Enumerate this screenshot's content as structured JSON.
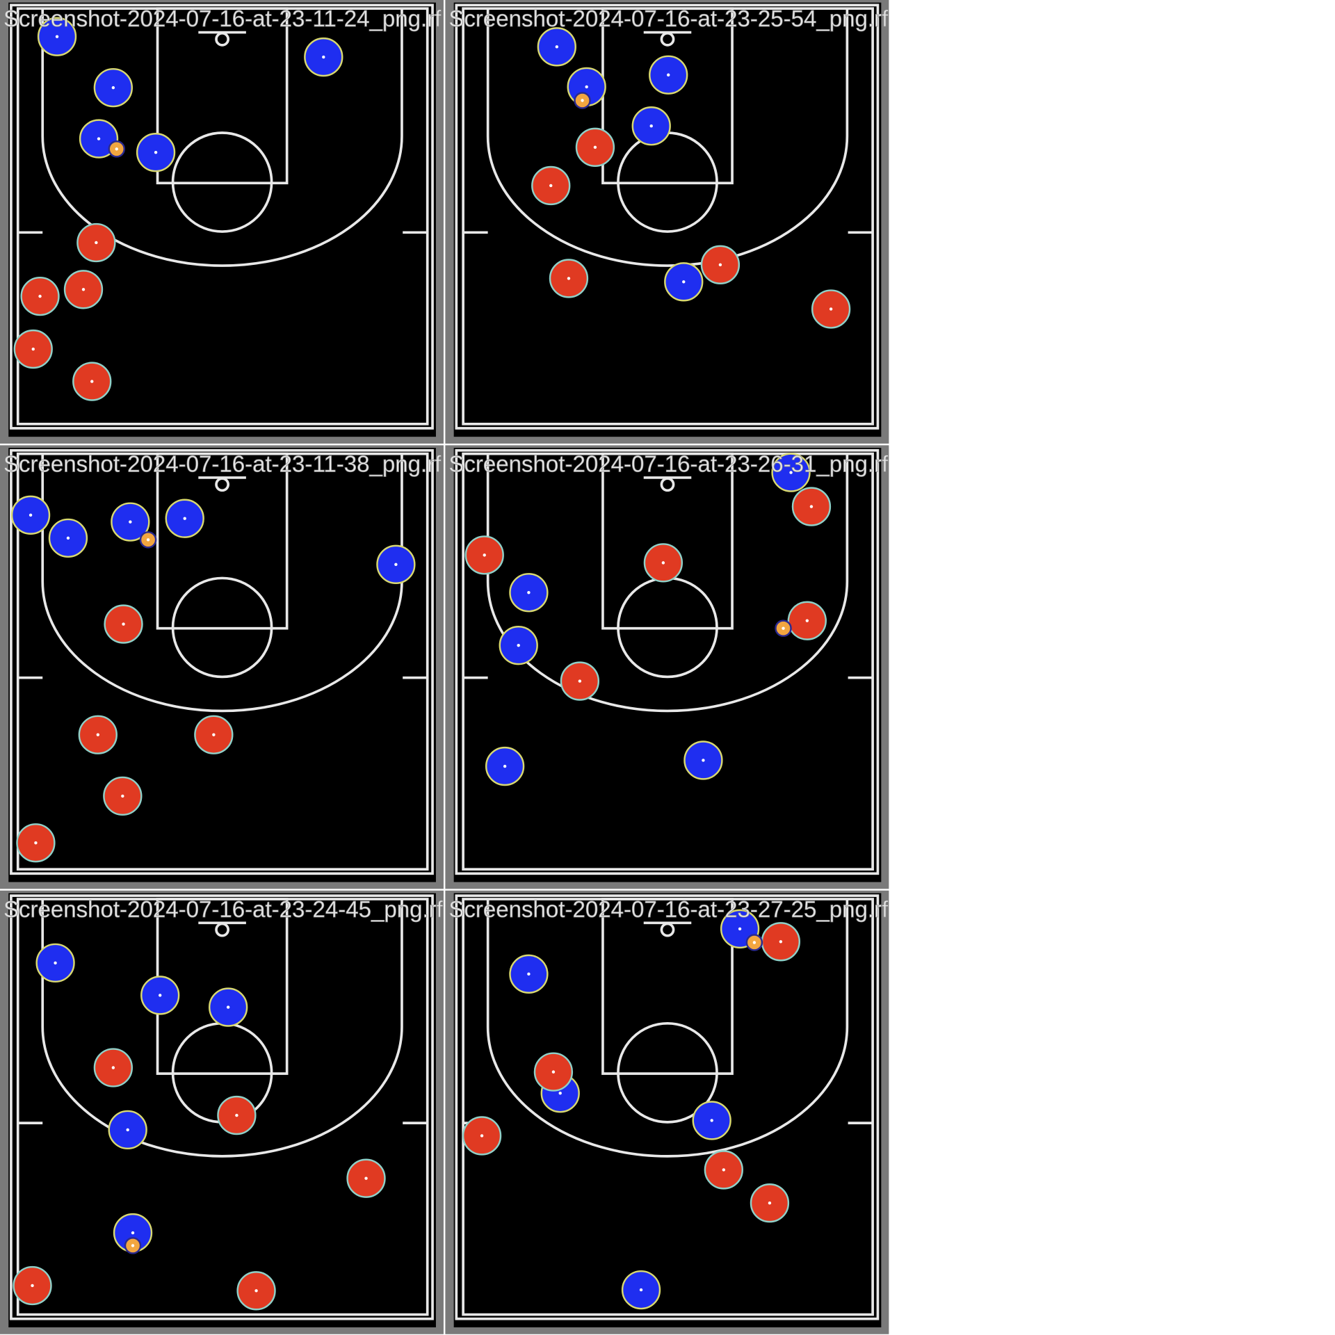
{
  "images": [
    {
      "title": "Screenshot-2024-07-16-at-23-11-24_png.rf"
    },
    {
      "title": "Screenshot-2024-07-16-at-23-25-54_png.rf"
    },
    {
      "title": "Screenshot-2024-07-16-at-23-11-38_png.rf"
    },
    {
      "title": "Screenshot-2024-07-16-at-23-26-31_png.rf"
    },
    {
      "title": "Screenshot-2024-07-16-at-23-24-45_png.rf"
    },
    {
      "title": "Screenshot-2024-07-16-at-23-27-25_png.rf"
    }
  ]
}
